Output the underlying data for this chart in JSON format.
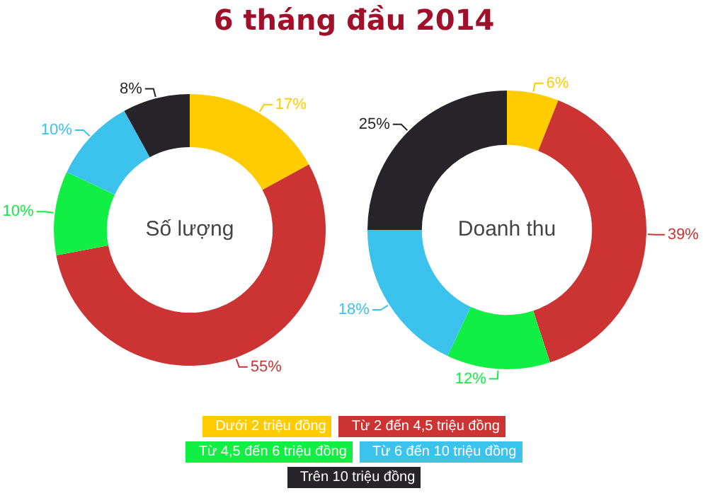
{
  "chart_data": [
    {
      "type": "donut",
      "title": "6 tháng đầu 2014",
      "annotations": [
        "Số lượng"
      ],
      "categories": [
        "Dưới 2 triệu đồng",
        "Từ 2 đến 4,5 triệu đồng",
        "Từ 4,5 đến 6 triệu đồng",
        "Từ 6 đến 10 triệu đồng",
        "Trên 10 triệu đồng"
      ],
      "values": [
        17,
        55,
        10,
        10,
        8
      ],
      "value_labels": [
        "17%",
        "55%",
        "10%",
        "10%",
        "8%"
      ],
      "colors": [
        "#fecc00",
        "#cc3333",
        "#11ee44",
        "#3bc3ee",
        "#262428"
      ],
      "legend": "bottom"
    },
    {
      "type": "donut",
      "annotations": [
        "Doanh thu"
      ],
      "categories": [
        null,
        null,
        null,
        null,
        null
      ],
      "values": [
        6,
        39,
        12,
        18,
        25
      ],
      "value_labels": [
        "6%",
        "39%",
        "12%",
        "18%",
        "25%"
      ],
      "colors": [
        "#fecc00",
        "#cc3333",
        "#11ee44",
        "#3bc3ee",
        "#262428"
      ]
    }
  ]
}
